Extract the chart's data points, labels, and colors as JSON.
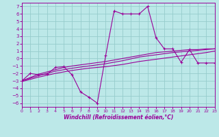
{
  "xlabel": "Windchill (Refroidissement éolien,°C)",
  "background_color": "#bce8e8",
  "grid_color": "#96cccc",
  "line_color": "#990099",
  "xlim": [
    0,
    23
  ],
  "ylim": [
    -6.5,
    7.5
  ],
  "xticks": [
    0,
    1,
    2,
    3,
    4,
    5,
    6,
    7,
    8,
    9,
    10,
    11,
    12,
    13,
    14,
    15,
    16,
    17,
    18,
    19,
    20,
    21,
    22,
    23
  ],
  "yticks": [
    -6,
    -5,
    -4,
    -3,
    -2,
    -1,
    0,
    1,
    2,
    3,
    4,
    5,
    6,
    7
  ],
  "main_x": [
    0,
    1,
    2,
    3,
    4,
    5,
    6,
    7,
    8,
    9,
    10,
    11,
    12,
    13,
    14,
    15,
    16,
    17,
    18,
    19,
    20,
    21,
    22,
    23
  ],
  "main_y": [
    -3,
    -2,
    -2.2,
    -2.1,
    -1.2,
    -1.1,
    -2.2,
    -4.5,
    -5.2,
    -6.0,
    0.4,
    6.4,
    6.0,
    6.0,
    6.0,
    7.0,
    2.8,
    1.3,
    1.3,
    -0.5,
    1.2,
    -0.6,
    -0.6,
    -0.6
  ],
  "trend1_x": [
    0,
    2,
    4,
    5,
    6,
    8,
    10,
    12,
    14,
    16,
    18,
    19,
    20,
    21,
    22,
    23
  ],
  "trend1_y": [
    -3,
    -2.1,
    -1.5,
    -1.2,
    -1.0,
    -0.7,
    -0.4,
    0.0,
    0.4,
    0.8,
    1.0,
    1.1,
    1.2,
    1.2,
    1.3,
    1.3
  ],
  "trend2_x": [
    0,
    2,
    4,
    5,
    6,
    8,
    10,
    12,
    14,
    16,
    18,
    20,
    22,
    23
  ],
  "trend2_y": [
    -3.0,
    -2.3,
    -1.7,
    -1.5,
    -1.3,
    -1.0,
    -0.7,
    -0.3,
    0.2,
    0.5,
    0.8,
    1.0,
    1.2,
    1.3
  ],
  "trend3_x": [
    0,
    2,
    4,
    5,
    6,
    8,
    10,
    12,
    14,
    16,
    18,
    20,
    22,
    23
  ],
  "trend3_y": [
    -3.1,
    -2.5,
    -2.0,
    -1.8,
    -1.6,
    -1.3,
    -1.1,
    -0.8,
    -0.4,
    -0.1,
    0.2,
    0.5,
    0.8,
    1.0
  ]
}
